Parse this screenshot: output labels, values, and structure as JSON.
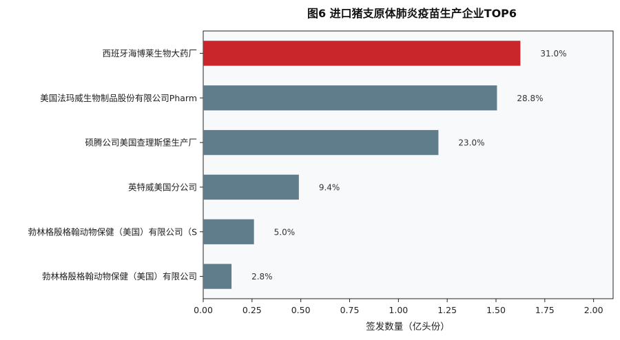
{
  "chart_data": {
    "type": "bar",
    "orientation": "horizontal",
    "title": "图6  进口猪支原体肺炎疫苗生产企业TOP6",
    "xlabel": "签发数量（亿头份）",
    "ylabel": "",
    "xlim": [
      0,
      2.1
    ],
    "xticks": [
      "0.00",
      "0.25",
      "0.50",
      "0.75",
      "1.00",
      "1.25",
      "1.50",
      "1.75",
      "2.00"
    ],
    "grid": false,
    "categories": [
      "西班牙海博莱生物大药厂",
      "美国法玛威生物制品股份有限公司Pharm",
      "硕腾公司美国查理斯堡生产厂",
      "英特威美国分公司",
      "勃林格殷格翰动物保健（美国）有限公司（S",
      "勃林格殷格翰动物保健（美国）有限公司"
    ],
    "values": [
      1.625,
      1.505,
      1.205,
      0.49,
      0.26,
      0.145
    ],
    "value_labels": [
      "31.0%",
      "28.8%",
      "23.0%",
      "9.4%",
      "5.0%",
      "2.8%"
    ],
    "colors": {
      "highlight": "#c8262a",
      "default": "#607d8b",
      "plot_background": "#f7f9fb"
    }
  }
}
